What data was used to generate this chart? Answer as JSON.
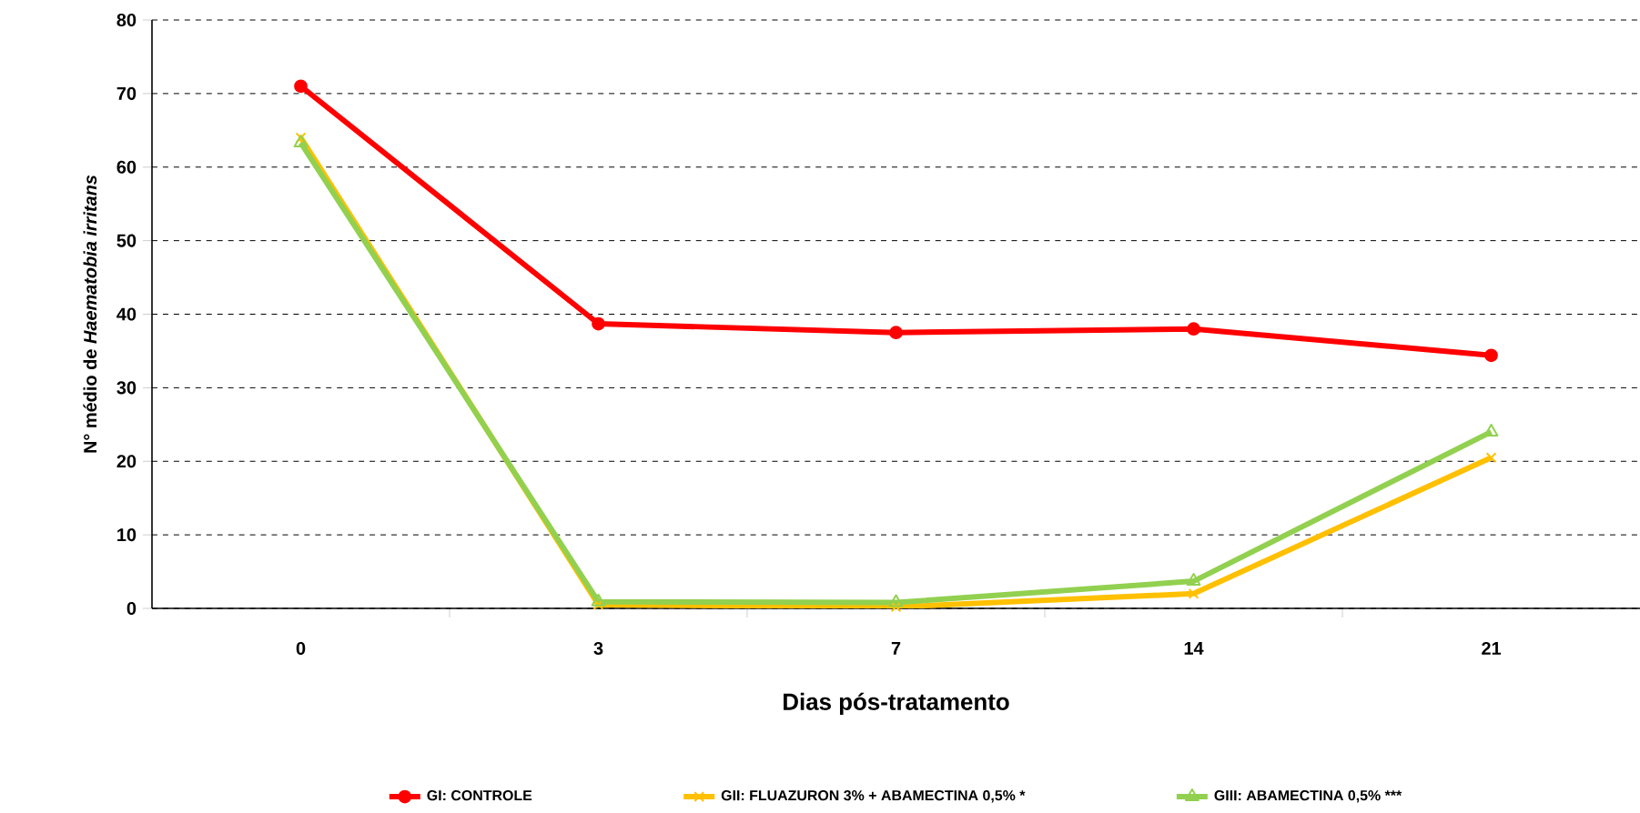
{
  "chart_data": {
    "type": "line",
    "xlabel": "Dias pós-tratamento",
    "ylabel": "N° médio de *Haematobia irritans*",
    "categories": [
      "0",
      "3",
      "7",
      "14",
      "21"
    ],
    "series": [
      {
        "name": "GI: CONTROLE",
        "color": "#ff0000",
        "marker": "circle",
        "values": [
          71,
          38.7,
          37.5,
          38,
          34.4
        ]
      },
      {
        "name": "GII: FLUAZURON 3% + ABAMECTINA  0,5% *",
        "color": "#ffc000",
        "marker": "cross",
        "values": [
          64,
          0.5,
          0.2,
          2,
          20.5
        ]
      },
      {
        "name": "GIII: ABAMECTINA  0,5% ***",
        "color": "#92d050",
        "marker": "triangle",
        "values": [
          63.3,
          0.9,
          0.8,
          3.7,
          24
        ]
      }
    ],
    "ylim": [
      0,
      80
    ],
    "yticks": [
      0,
      10,
      20,
      30,
      40,
      50,
      60,
      70,
      80
    ],
    "grid": "y",
    "legend": "bottom",
    "line_style": "solid"
  }
}
